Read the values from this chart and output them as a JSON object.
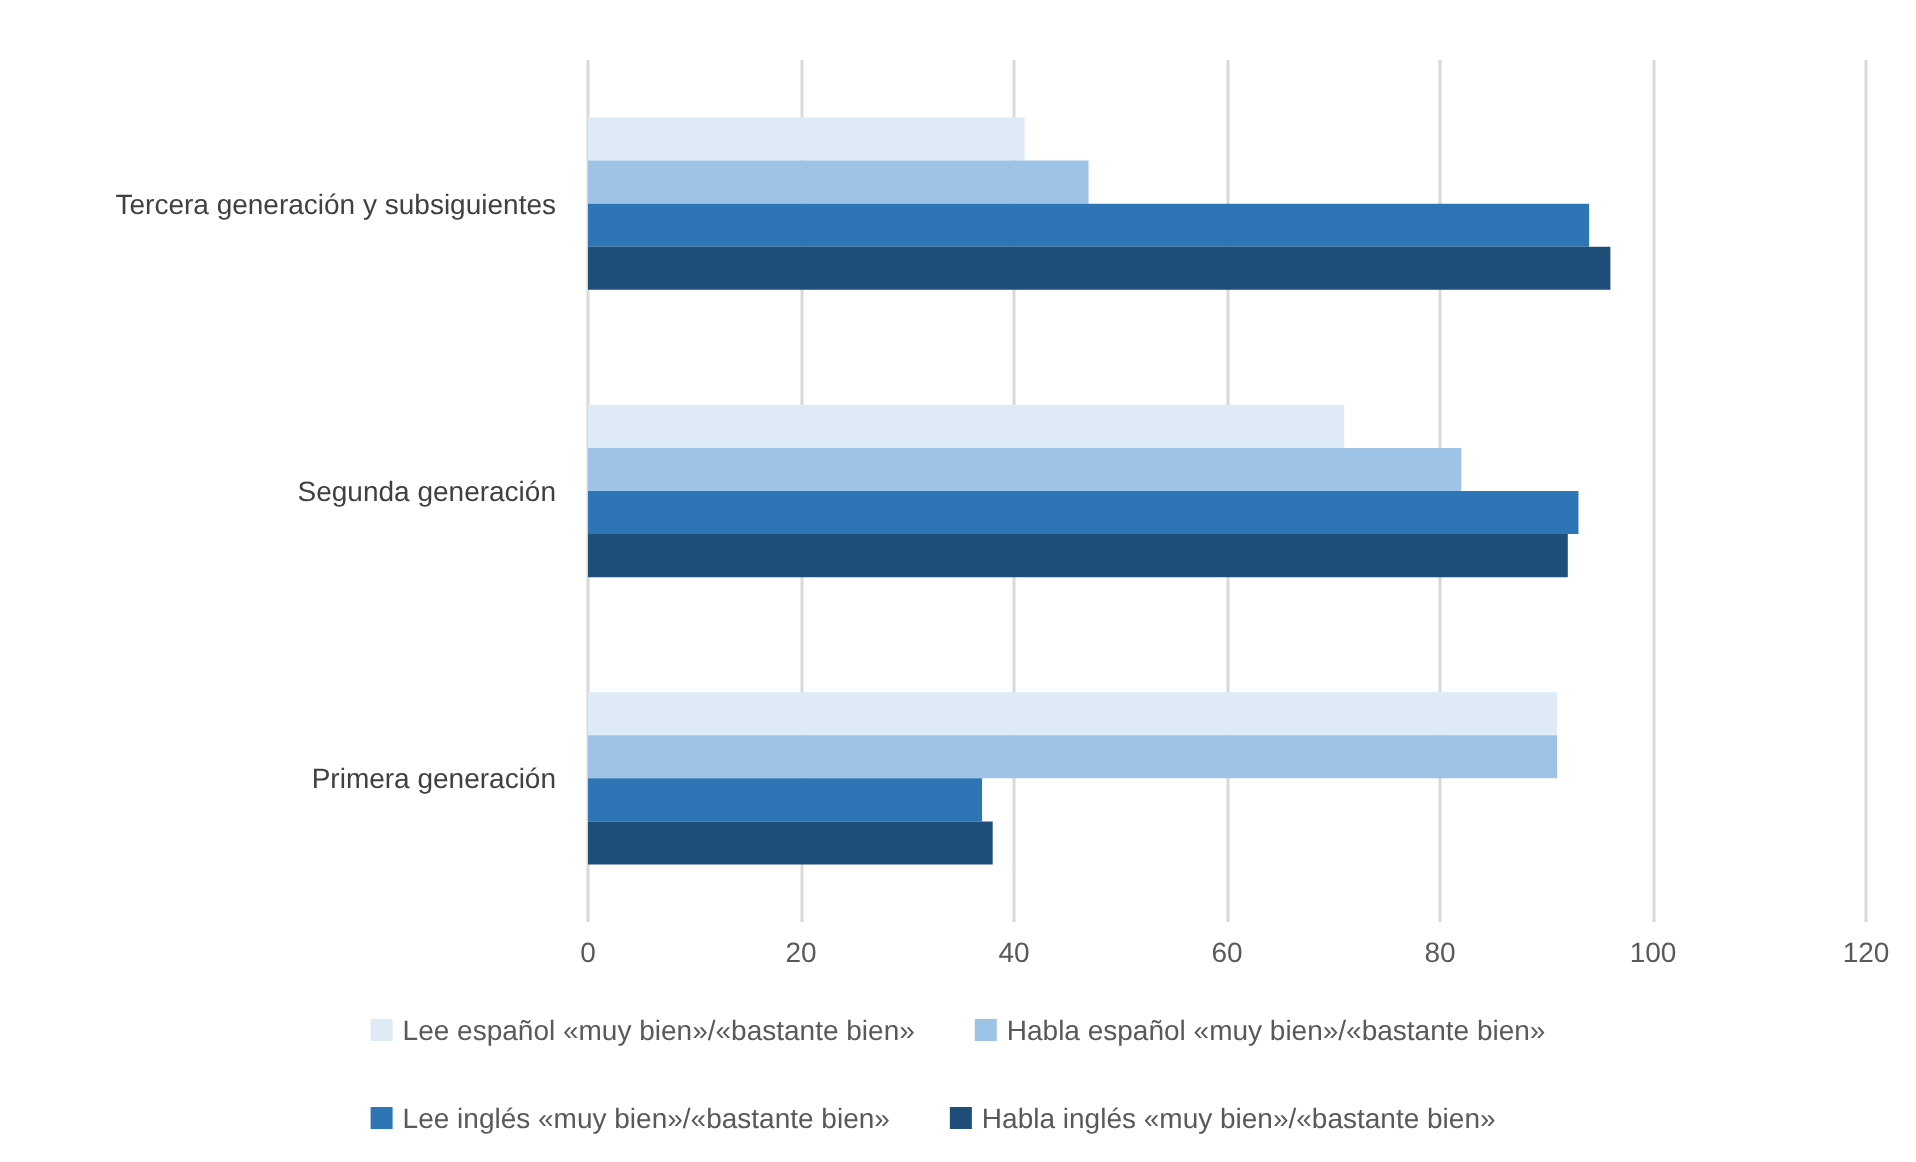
{
  "chart_data": {
    "type": "bar",
    "orientation": "horizontal",
    "categories": [
      "Tercera generación y subsiguientes",
      "Segunda generación",
      "Primera generación"
    ],
    "series": [
      {
        "name": "Lee español «muy bien»/«bastante bien»",
        "color": "#deebf7",
        "values": [
          41,
          71,
          91
        ]
      },
      {
        "name": "Habla español «muy bien»/«bastante bien»",
        "color": "#9dc3e6",
        "values": [
          47,
          82,
          91
        ]
      },
      {
        "name": "Lee inglés «muy bien»/«bastante bien»",
        "color": "#2e75b6",
        "values": [
          94,
          93,
          37
        ]
      },
      {
        "name": "Habla inglés «muy bien»/«bastante bien»",
        "color": "#1f4e79",
        "values": [
          96,
          92,
          38
        ]
      }
    ],
    "xlim": [
      0,
      120
    ],
    "xticks": [
      0,
      20,
      40,
      60,
      80,
      100,
      120
    ],
    "grid": "x",
    "legend": "bottom"
  }
}
